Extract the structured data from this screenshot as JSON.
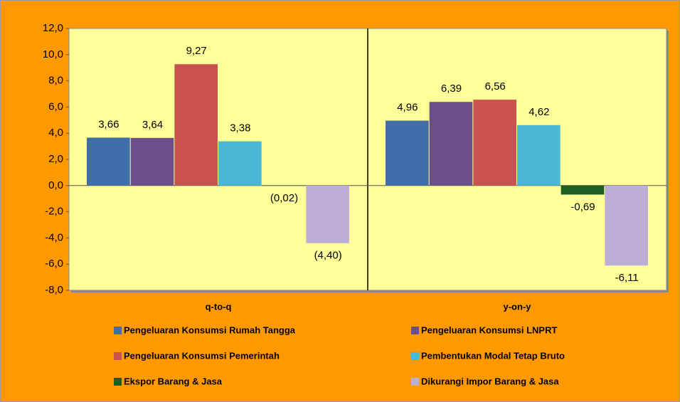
{
  "chart_data": {
    "type": "bar",
    "categories": [
      "q-to-q",
      "y-on-y"
    ],
    "series": [
      {
        "name": "Pengeluaran Konsumsi Rumah Tangga",
        "color": "#3f6ea8",
        "values": [
          3.66,
          4.96
        ],
        "value_labels": [
          "3,66",
          "4,96"
        ]
      },
      {
        "name": "Pengeluaran Konsumsi LNPRT",
        "color": "#6b4f8b",
        "values": [
          3.64,
          6.39
        ],
        "value_labels": [
          "3,64",
          "6,39"
        ]
      },
      {
        "name": "Pengeluaran Konsumsi Pemerintah",
        "color": "#c9534f",
        "values": [
          9.27,
          6.56
        ],
        "value_labels": [
          "9,27",
          "6,56"
        ]
      },
      {
        "name": "Pembentukan Modal Tetap Bruto",
        "color": "#4bb8d6",
        "values": [
          3.38,
          4.62
        ],
        "value_labels": [
          "3,38",
          "4,62"
        ]
      },
      {
        "name": "Ekspor Barang & Jasa",
        "color": "#1e5e1e",
        "values": [
          -0.02,
          -0.69
        ],
        "value_labels": [
          "(0,02)",
          "-0,69"
        ]
      },
      {
        "name": "Dikurangi Impor Barang & Jasa",
        "color": "#bdaed7",
        "values": [
          -4.4,
          -6.11
        ],
        "value_labels": [
          "(4,40)",
          "-6,11"
        ]
      }
    ],
    "ylim": [
      -8,
      12
    ],
    "yticks": [
      {
        "value": -8,
        "label": "-8,0"
      },
      {
        "value": -6,
        "label": "-6,0"
      },
      {
        "value": -4,
        "label": "-4,0"
      },
      {
        "value": -2,
        "label": "-2,0"
      },
      {
        "value": 0,
        "label": "0,0"
      },
      {
        "value": 2,
        "label": "2,0"
      },
      {
        "value": 4,
        "label": "4,0"
      },
      {
        "value": 6,
        "label": "6,0"
      },
      {
        "value": 8,
        "label": "8,0"
      },
      {
        "value": 10,
        "label": "10,0"
      },
      {
        "value": 12,
        "label": "12,0"
      }
    ],
    "legend": "bottom"
  }
}
